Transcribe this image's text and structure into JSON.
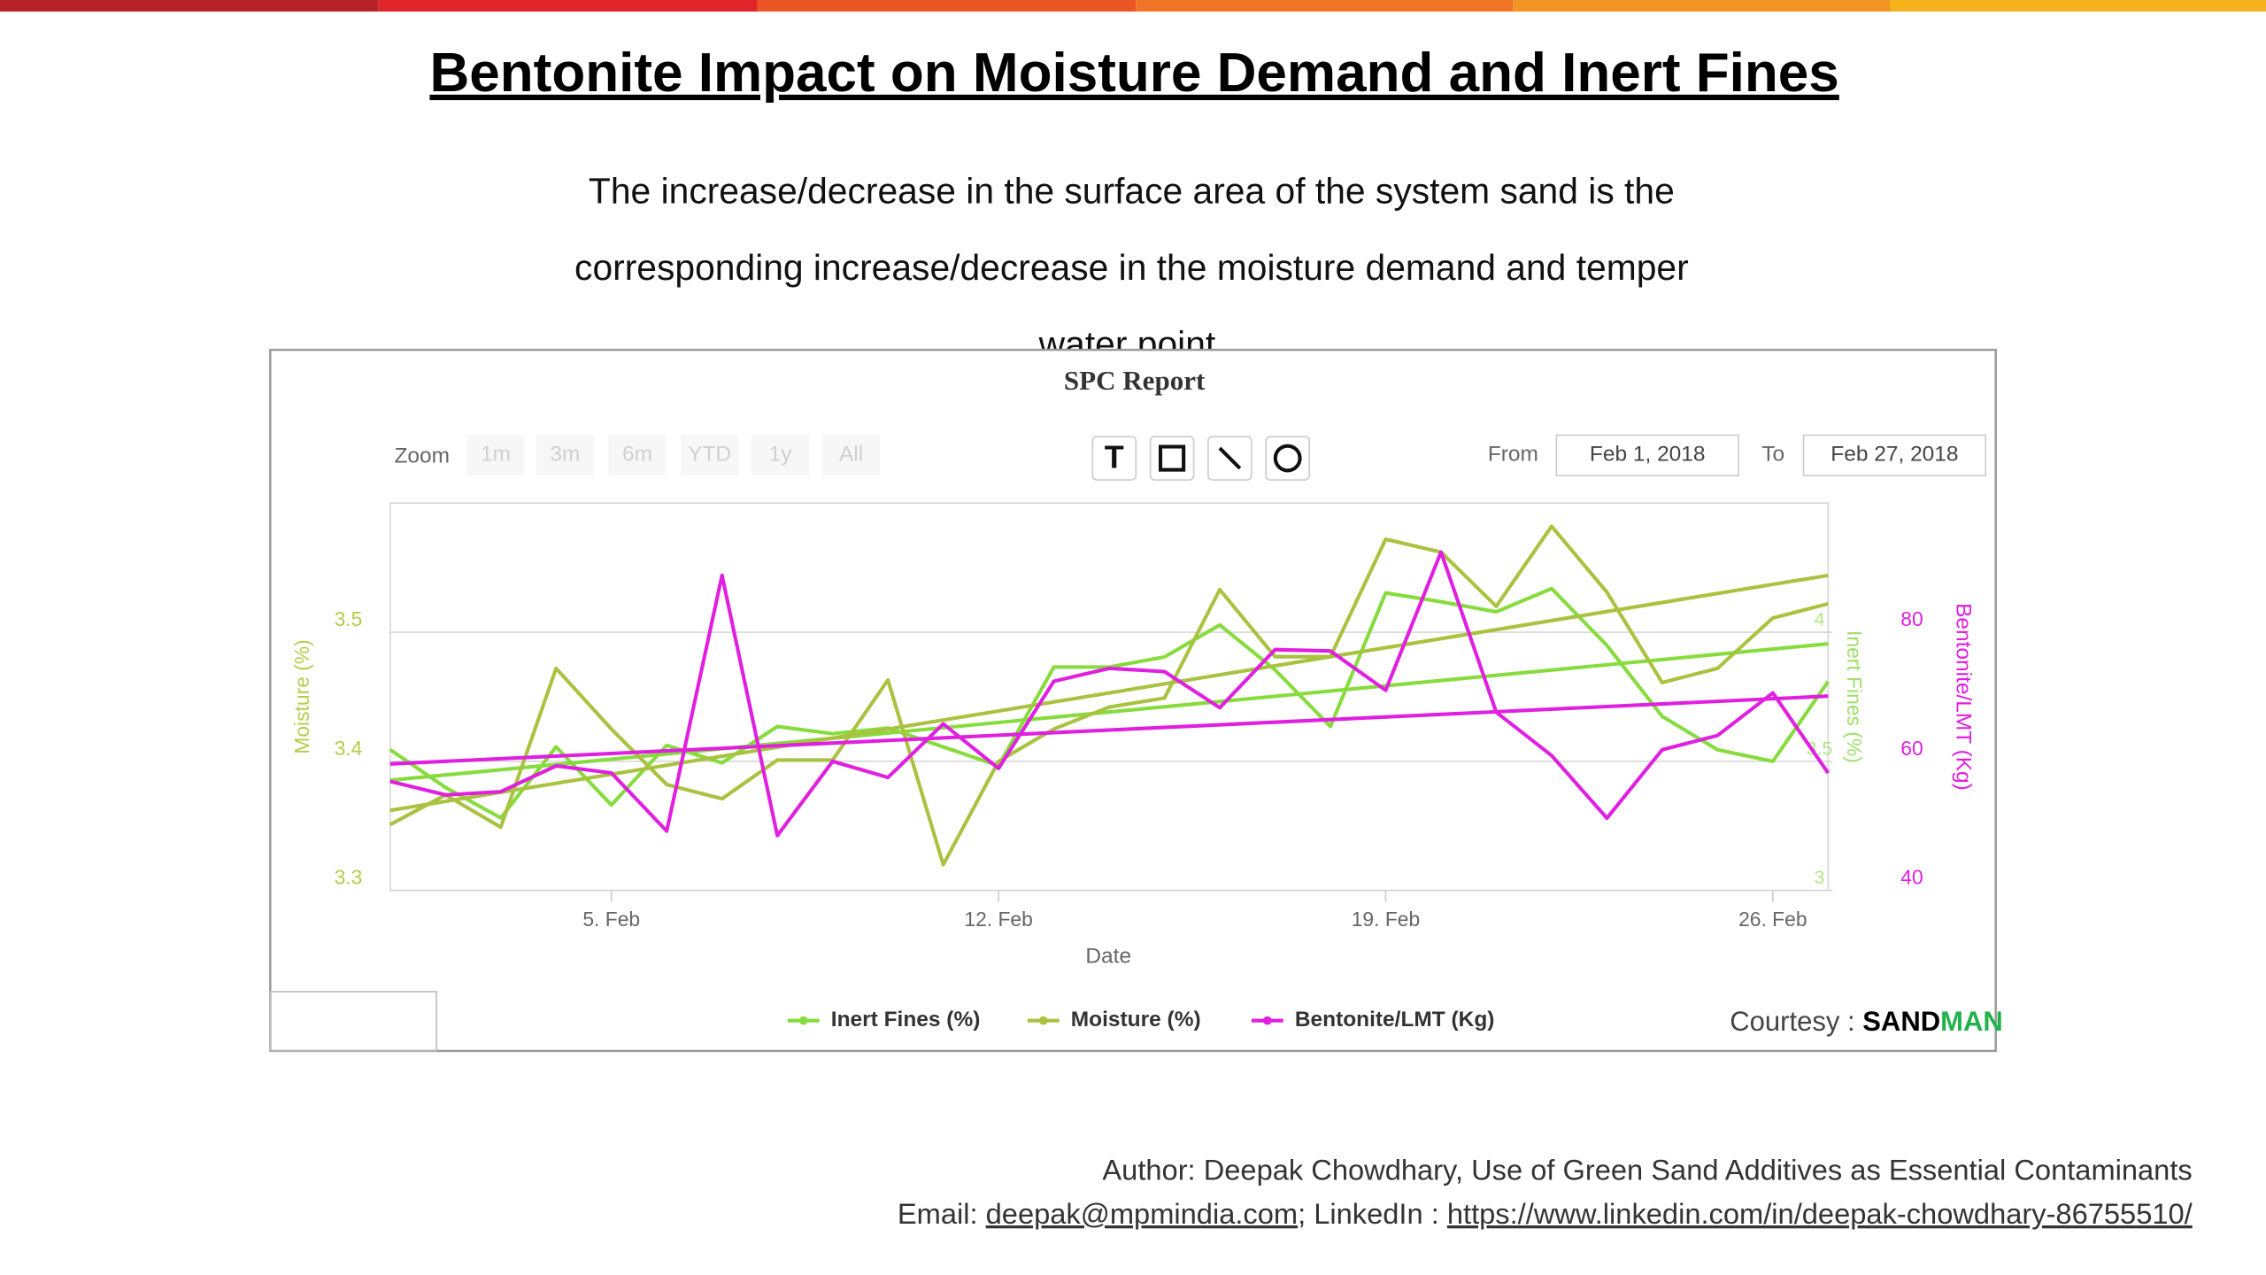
{
  "slide": {
    "title": "Bentonite Impact on Moisture Demand and Inert Fines",
    "subtitle_lines": [
      "The increase/decrease in the surface area of the system sand is the",
      "corresponding increase/decrease in the moisture demand and temper",
      "water point"
    ],
    "courtesy": {
      "label": "Courtesy : ",
      "brand_a": "SAND",
      "brand_b": "MAN"
    },
    "footer": {
      "author": "Author: Deepak Chowdhary, Use of Green Sand Additives as Essential Contaminants",
      "email_label": "Email: ",
      "email": "deepak@mpmindia.com",
      "linkedin_label": "; LinkedIn : ",
      "linkedin_url": "https://www.linkedin.com/in/deepak-chowdhary-86755510/"
    }
  },
  "chart_data": {
    "type": "line",
    "title": "SPC Report",
    "zoom": {
      "label": "Zoom",
      "buttons": [
        "1m",
        "3m",
        "6m",
        "YTD",
        "1y",
        "All"
      ]
    },
    "range": {
      "from_label": "From",
      "from": "Feb 1, 2018",
      "to_label": "To",
      "to": "Feb 27, 2018"
    },
    "x_label": "Date",
    "x": [
      1,
      2,
      3,
      4,
      5,
      6,
      7,
      8,
      9,
      10,
      11,
      12,
      13,
      14,
      15,
      16,
      17,
      18,
      19,
      20,
      21,
      22,
      23,
      24,
      25,
      26,
      27
    ],
    "xlim": [
      1,
      27
    ],
    "xticks": [
      {
        "value": 5,
        "label": "5. Feb"
      },
      {
        "value": 12,
        "label": "12. Feb"
      },
      {
        "value": 19,
        "label": "19. Feb"
      },
      {
        "value": 26,
        "label": "26. Feb"
      }
    ],
    "y_label": "Moisture (%)",
    "ylim": [
      3.3,
      3.6
    ],
    "yticks": [
      3.3,
      3.4,
      3.5
    ],
    "y2_label": "Bentonite/LMT (Kg)",
    "y2lim": [
      40,
      100
    ],
    "y2ticks": [
      40,
      60,
      80
    ],
    "y3_label": "Inert Fines (%)",
    "y3lim": [
      3,
      4.5
    ],
    "y3ticks": [
      3,
      3.5,
      4
    ],
    "grid": true,
    "series": [
      {
        "name": "Inert Fines (%)",
        "color": "#86dc3c",
        "axis": "y3",
        "values": [
          3.545,
          3.399,
          3.281,
          3.556,
          3.331,
          3.562,
          3.494,
          3.635,
          3.607,
          3.629,
          3.556,
          3.483,
          3.865,
          3.865,
          3.904,
          4.028,
          3.854,
          3.635,
          4.152,
          4.118,
          4.079,
          4.169,
          3.949,
          3.674,
          3.545,
          3.5,
          3.809
        ],
        "trend": [
          3.427,
          3.955
        ]
      },
      {
        "name": "Moisture (%)",
        "color": "#a9c23f",
        "axis": "y",
        "values": [
          3.351,
          3.374,
          3.349,
          3.472,
          3.425,
          3.382,
          3.371,
          3.401,
          3.401,
          3.463,
          3.32,
          3.4,
          3.425,
          3.442,
          3.449,
          3.533,
          3.481,
          3.481,
          3.572,
          3.562,
          3.52,
          3.582,
          3.531,
          3.461,
          3.472,
          3.511,
          3.522
        ],
        "trend": [
          3.362,
          3.544
        ]
      },
      {
        "name": "Bentonite/LMT (Kg)",
        "color": "#e01fe0",
        "axis": "y2",
        "values": [
          56.9,
          54.8,
          55.3,
          59.3,
          58.2,
          49.2,
          88.8,
          48.5,
          60.0,
          57.5,
          65.8,
          58.9,
          72.4,
          74.4,
          73.9,
          68.3,
          77.3,
          77.1,
          71.0,
          92.4,
          67.6,
          60.9,
          51.2,
          61.8,
          64.0,
          70.6,
          58.2
        ],
        "trend": [
          59.6,
          70.1
        ]
      }
    ]
  }
}
